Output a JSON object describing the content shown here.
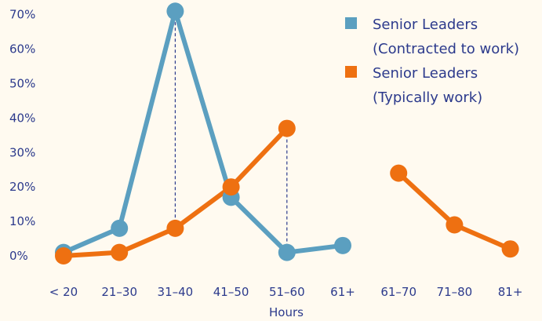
{
  "chart_data": {
    "type": "line",
    "xlabel": "Hours",
    "ylabel": "",
    "ylim": [
      0,
      70
    ],
    "yticks": [
      "0%",
      "10%",
      "20%",
      "30%",
      "40%",
      "50%",
      "60%",
      "70%"
    ],
    "categories": [
      "< 20",
      "21–30",
      "31–40",
      "41–50",
      "51–60",
      "61+",
      "61–70",
      "71–80",
      "81+"
    ],
    "series": [
      {
        "name": "Senior Leaders (Contracted to work)",
        "color": "#5b9fc0",
        "points": [
          {
            "x": "< 20",
            "y": 1
          },
          {
            "x": "21–30",
            "y": 8
          },
          {
            "x": "31–40",
            "y": 71
          },
          {
            "x": "41–50",
            "y": 17
          },
          {
            "x": "51–60",
            "y": 1
          },
          {
            "x": "61+",
            "y": 3
          }
        ]
      },
      {
        "name": "Senior Leaders (Typically work)",
        "color": "#ee7011",
        "segments": [
          [
            {
              "x": "< 20",
              "y": 0
            },
            {
              "x": "21–30",
              "y": 1
            },
            {
              "x": "31–40",
              "y": 8
            },
            {
              "x": "41–50",
              "y": 20
            },
            {
              "x": "51–60",
              "y": 37
            }
          ],
          [
            {
              "x": "61–70",
              "y": 24
            },
            {
              "x": "71–80",
              "y": 9
            },
            {
              "x": "81+",
              "y": 2
            }
          ]
        ]
      }
    ],
    "legend": {
      "position": "top-right",
      "items": [
        {
          "line1": "Senior Leaders",
          "line2": "(Contracted to work)",
          "color": "#5b9fc0"
        },
        {
          "line1": "Senior Leaders",
          "line2": "(Typically work)",
          "color": "#ee7011"
        }
      ]
    },
    "drop_lines": [
      {
        "x": "31–40",
        "from": 71,
        "to": 8
      },
      {
        "x": "51–60",
        "from": 37,
        "to": 1
      }
    ],
    "grid": false
  }
}
